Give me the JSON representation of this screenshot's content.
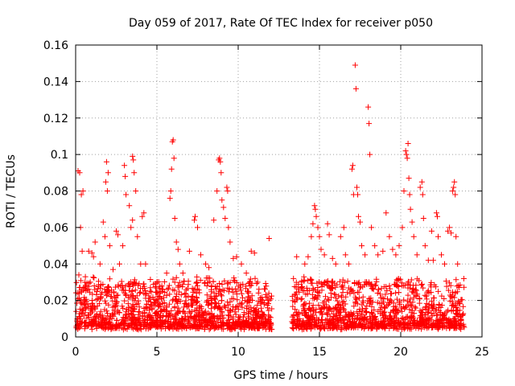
{
  "chart_data": {
    "type": "scatter",
    "title": "Day 059 of 2017, Rate Of TEC Index for receiver p050",
    "xlabel": "GPS time / hours",
    "ylabel": "ROTI / TECUs",
    "xlim": [
      0,
      24
    ],
    "ylim": [
      0,
      0.16
    ],
    "x_ticks": [
      "0",
      "5",
      "10",
      "15",
      "20",
      "25"
    ],
    "y_ticks": [
      "0",
      "0.02",
      "0.04",
      "0.06",
      "0.08",
      "0.1",
      "0.12",
      "0.14",
      "0.16"
    ],
    "grid": true,
    "marker": "plus",
    "marker_color": "#ff0000",
    "data_gap_hours": [
      12.1,
      13.3
    ],
    "series": [
      {
        "points": [
          [
            0.15,
            0.091
          ],
          [
            0.25,
            0.09
          ],
          [
            0.35,
            0.078
          ],
          [
            0.45,
            0.08
          ],
          [
            0.3,
            0.06
          ],
          [
            0.4,
            0.047
          ],
          [
            0.2,
            0.034
          ],
          [
            0.6,
            0.033
          ],
          [
            0.8,
            0.047
          ],
          [
            1.1,
            0.044
          ],
          [
            1.2,
            0.052
          ],
          [
            1.0,
            0.046
          ],
          [
            0.9,
            0.03
          ],
          [
            1.5,
            0.04
          ],
          [
            1.7,
            0.063
          ],
          [
            1.8,
            0.055
          ],
          [
            1.85,
            0.085
          ],
          [
            1.9,
            0.096
          ],
          [
            2.0,
            0.09
          ],
          [
            1.95,
            0.08
          ],
          [
            2.1,
            0.05
          ],
          [
            2.3,
            0.037
          ],
          [
            2.5,
            0.058
          ],
          [
            2.6,
            0.056
          ],
          [
            2.7,
            0.04
          ],
          [
            2.9,
            0.05
          ],
          [
            3.0,
            0.094
          ],
          [
            3.05,
            0.088
          ],
          [
            3.1,
            0.078
          ],
          [
            3.3,
            0.072
          ],
          [
            3.5,
            0.099
          ],
          [
            3.55,
            0.097
          ],
          [
            3.6,
            0.09
          ],
          [
            3.7,
            0.08
          ],
          [
            3.5,
            0.064
          ],
          [
            3.4,
            0.06
          ],
          [
            3.8,
            0.055
          ],
          [
            4.0,
            0.04
          ],
          [
            4.1,
            0.066
          ],
          [
            4.2,
            0.068
          ],
          [
            4.3,
            0.04
          ],
          [
            4.6,
            0.027
          ],
          [
            5.0,
            0.03
          ],
          [
            5.3,
            0.028
          ],
          [
            5.6,
            0.035
          ],
          [
            5.8,
            0.076
          ],
          [
            5.85,
            0.08
          ],
          [
            5.9,
            0.092
          ],
          [
            5.95,
            0.107
          ],
          [
            6.0,
            0.108
          ],
          [
            6.05,
            0.098
          ],
          [
            6.1,
            0.065
          ],
          [
            6.2,
            0.052
          ],
          [
            6.3,
            0.048
          ],
          [
            6.4,
            0.04
          ],
          [
            6.6,
            0.035
          ],
          [
            7.0,
            0.047
          ],
          [
            7.3,
            0.064
          ],
          [
            7.35,
            0.066
          ],
          [
            7.5,
            0.06
          ],
          [
            7.7,
            0.045
          ],
          [
            8.0,
            0.04
          ],
          [
            8.2,
            0.038
          ],
          [
            8.5,
            0.064
          ],
          [
            8.7,
            0.08
          ],
          [
            8.8,
            0.097
          ],
          [
            8.85,
            0.098
          ],
          [
            8.9,
            0.096
          ],
          [
            8.95,
            0.09
          ],
          [
            9.0,
            0.075
          ],
          [
            9.1,
            0.071
          ],
          [
            9.2,
            0.065
          ],
          [
            9.3,
            0.082
          ],
          [
            9.35,
            0.08
          ],
          [
            9.4,
            0.06
          ],
          [
            9.5,
            0.052
          ],
          [
            9.7,
            0.043
          ],
          [
            9.9,
            0.044
          ],
          [
            10.2,
            0.04
          ],
          [
            10.5,
            0.035
          ],
          [
            10.8,
            0.047
          ],
          [
            11.0,
            0.046
          ],
          [
            11.2,
            0.03
          ],
          [
            11.5,
            0.02
          ],
          [
            11.9,
            0.054
          ],
          [
            11.6,
            0.018
          ],
          [
            11.8,
            0.016
          ],
          [
            13.4,
            0.032
          ],
          [
            13.6,
            0.044
          ],
          [
            13.9,
            0.03
          ],
          [
            14.1,
            0.04
          ],
          [
            14.3,
            0.044
          ],
          [
            14.5,
            0.055
          ],
          [
            14.6,
            0.062
          ],
          [
            14.7,
            0.072
          ],
          [
            14.75,
            0.07
          ],
          [
            14.8,
            0.066
          ],
          [
            14.9,
            0.06
          ],
          [
            15.0,
            0.055
          ],
          [
            15.1,
            0.048
          ],
          [
            15.3,
            0.045
          ],
          [
            15.5,
            0.062
          ],
          [
            15.6,
            0.056
          ],
          [
            15.8,
            0.043
          ],
          [
            16.0,
            0.04
          ],
          [
            16.3,
            0.055
          ],
          [
            16.5,
            0.06
          ],
          [
            16.6,
            0.045
          ],
          [
            16.8,
            0.04
          ],
          [
            17.0,
            0.092
          ],
          [
            17.05,
            0.094
          ],
          [
            17.1,
            0.078
          ],
          [
            17.2,
            0.149
          ],
          [
            17.25,
            0.136
          ],
          [
            17.3,
            0.082
          ],
          [
            17.35,
            0.078
          ],
          [
            17.4,
            0.066
          ],
          [
            17.5,
            0.063
          ],
          [
            17.6,
            0.05
          ],
          [
            17.8,
            0.045
          ],
          [
            18.0,
            0.126
          ],
          [
            18.05,
            0.117
          ],
          [
            18.1,
            0.1
          ],
          [
            18.2,
            0.06
          ],
          [
            18.4,
            0.05
          ],
          [
            18.6,
            0.045
          ],
          [
            18.9,
            0.047
          ],
          [
            19.1,
            0.068
          ],
          [
            19.3,
            0.055
          ],
          [
            19.5,
            0.048
          ],
          [
            19.7,
            0.045
          ],
          [
            19.9,
            0.05
          ],
          [
            20.1,
            0.06
          ],
          [
            20.2,
            0.08
          ],
          [
            20.3,
            0.102
          ],
          [
            20.35,
            0.1
          ],
          [
            20.4,
            0.098
          ],
          [
            20.45,
            0.106
          ],
          [
            20.5,
            0.087
          ],
          [
            20.55,
            0.078
          ],
          [
            20.6,
            0.07
          ],
          [
            20.7,
            0.063
          ],
          [
            20.8,
            0.055
          ],
          [
            21.0,
            0.045
          ],
          [
            21.2,
            0.082
          ],
          [
            21.3,
            0.085
          ],
          [
            21.35,
            0.078
          ],
          [
            21.4,
            0.065
          ],
          [
            21.5,
            0.05
          ],
          [
            21.7,
            0.042
          ],
          [
            21.9,
            0.058
          ],
          [
            22.0,
            0.042
          ],
          [
            22.2,
            0.068
          ],
          [
            22.25,
            0.066
          ],
          [
            22.3,
            0.055
          ],
          [
            22.5,
            0.045
          ],
          [
            22.7,
            0.04
          ],
          [
            22.9,
            0.058
          ],
          [
            23.0,
            0.06
          ],
          [
            23.1,
            0.057
          ],
          [
            23.2,
            0.08
          ],
          [
            23.25,
            0.082
          ],
          [
            23.3,
            0.085
          ],
          [
            23.35,
            0.078
          ],
          [
            23.4,
            0.055
          ],
          [
            23.5,
            0.04
          ]
        ]
      }
    ]
  }
}
